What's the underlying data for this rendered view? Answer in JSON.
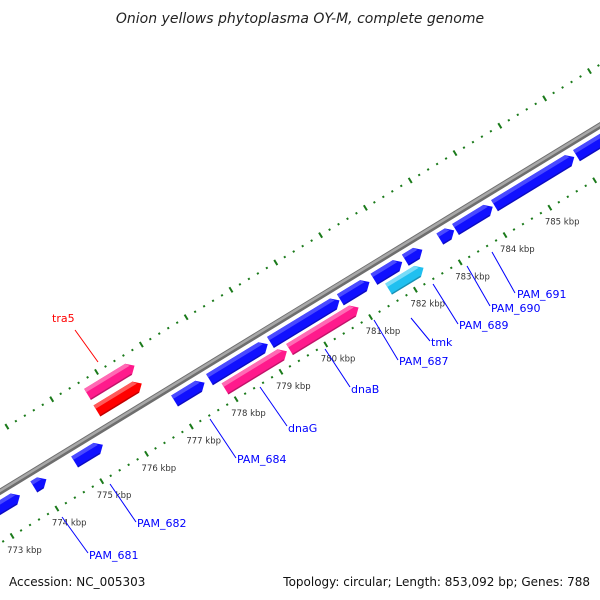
{
  "title": "Onion yellows phytoplasma OY-M, complete genome",
  "footer": {
    "accession": "Accession: NC_005303",
    "summary": "Topology: circular; Length: 853,092 bp; Genes: 788"
  },
  "colors": {
    "backbone": "#8a8a8a",
    "forward_cds": "#1010ff",
    "forward_cds_light": "#4a4aff",
    "rrna": "#ff1a8c",
    "rrna_light": "#ff6ab4",
    "reverse_cds": "#ff0000",
    "reverse_cds_light": "#ff5a5a",
    "trna": "#20c0f0",
    "trna_light": "#7adcf8",
    "ticks": "#1a7a1a",
    "label_forward": "#0000ff",
    "label_reverse": "#ff0000"
  },
  "ticks": [
    {
      "kbp": 773,
      "label": "773 kbp"
    },
    {
      "kbp": 774,
      "label": "774 kbp"
    },
    {
      "kbp": 775,
      "label": "775 kbp"
    },
    {
      "kbp": 776,
      "label": "776 kbp"
    },
    {
      "kbp": 777,
      "label": "777 kbp"
    },
    {
      "kbp": 778,
      "label": "778 kbp"
    },
    {
      "kbp": 779,
      "label": "779 kbp"
    },
    {
      "kbp": 780,
      "label": "780 kbp"
    },
    {
      "kbp": 781,
      "label": "781 kbp"
    },
    {
      "kbp": 782,
      "label": "782 kbp"
    },
    {
      "kbp": 783,
      "label": "783 kbp"
    },
    {
      "kbp": 784,
      "label": "784 kbp"
    },
    {
      "kbp": 785,
      "label": "785 kbp"
    }
  ],
  "genes": [
    {
      "start": 772.4,
      "end": 773.53,
      "strand": "forward",
      "type": "forward_cds"
    },
    {
      "start": 773.84,
      "end": 774.12,
      "strand": "forward",
      "type": "forward_cds"
    },
    {
      "start": 774.75,
      "end": 775.38,
      "strand": "forward",
      "type": "forward_cds"
    },
    {
      "start": 776.98,
      "end": 777.65,
      "strand": "forward",
      "type": "forward_cds"
    },
    {
      "start": 777.76,
      "end": 779.06,
      "strand": "forward",
      "type": "forward_cds"
    },
    {
      "start": 779.12,
      "end": 780.66,
      "strand": "forward",
      "type": "forward_cds"
    },
    {
      "start": 780.68,
      "end": 781.33,
      "strand": "forward",
      "type": "forward_cds"
    },
    {
      "start": 781.43,
      "end": 782.06,
      "strand": "forward",
      "type": "forward_cds"
    },
    {
      "start": 782.13,
      "end": 782.51,
      "strand": "forward",
      "type": "forward_cds"
    },
    {
      "start": 782.9,
      "end": 783.22,
      "strand": "forward",
      "type": "forward_cds"
    },
    {
      "start": 783.25,
      "end": 784.08,
      "strand": "forward",
      "type": "forward_cds"
    },
    {
      "start": 784.12,
      "end": 785.9,
      "strand": "forward",
      "type": "forward_cds"
    },
    {
      "start": 785.95,
      "end": 787.2,
      "strand": "forward",
      "type": "forward_cds"
    },
    {
      "start": 777.92,
      "end": 779.3,
      "strand": "forward",
      "type": "rrna"
    },
    {
      "start": 779.36,
      "end": 780.9,
      "strand": "forward",
      "type": "rrna"
    },
    {
      "start": 781.57,
      "end": 782.35,
      "strand": "forward",
      "type": "trna"
    },
    {
      "start": 775.62,
      "end": 776.62,
      "strand": "reverse",
      "type": "reverse_cds"
    },
    {
      "start": 775.63,
      "end": 776.68,
      "strand": "reverse",
      "type": "rrna"
    }
  ],
  "labels": [
    {
      "text": "tra5",
      "strand": "reverse"
    },
    {
      "text": "PAM_681",
      "strand": "forward"
    },
    {
      "text": "PAM_682",
      "strand": "forward"
    },
    {
      "text": "PAM_684",
      "strand": "forward"
    },
    {
      "text": "dnaG",
      "strand": "forward"
    },
    {
      "text": "dnaB",
      "strand": "forward"
    },
    {
      "text": "PAM_687",
      "strand": "forward"
    },
    {
      "text": "tmk",
      "strand": "forward"
    },
    {
      "text": "PAM_689",
      "strand": "forward"
    },
    {
      "text": "PAM_690",
      "strand": "forward"
    },
    {
      "text": "PAM_691",
      "strand": "forward"
    }
  ]
}
